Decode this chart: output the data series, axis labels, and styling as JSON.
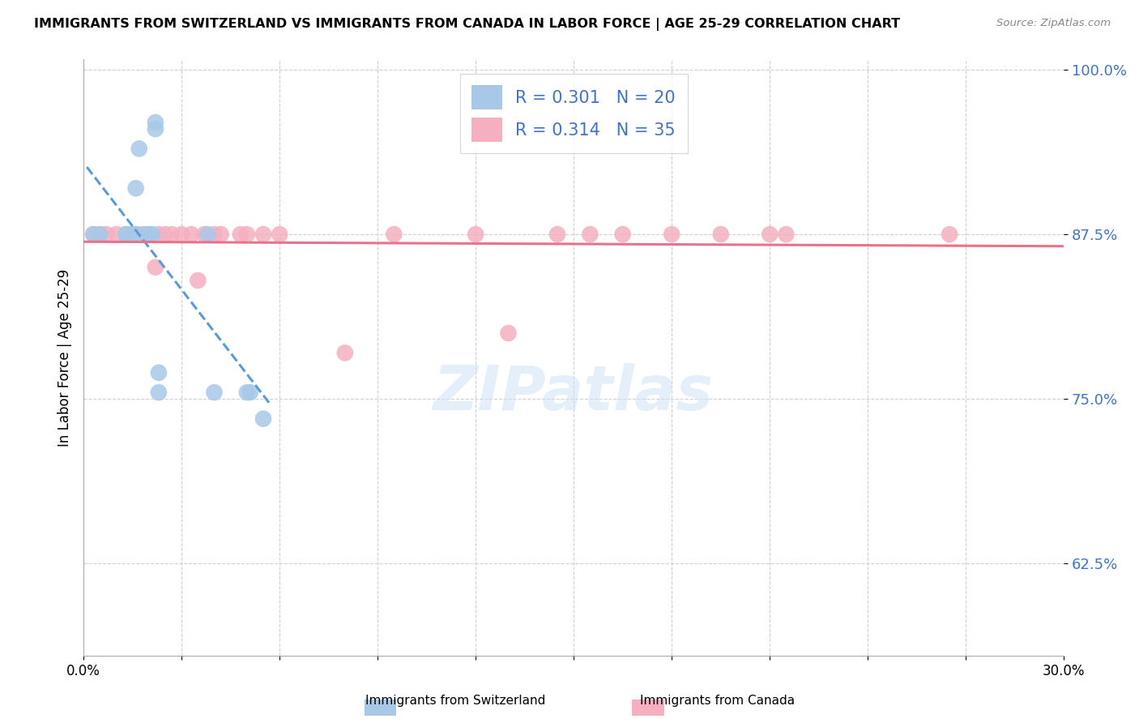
{
  "title": "IMMIGRANTS FROM SWITZERLAND VS IMMIGRANTS FROM CANADA IN LABOR FORCE | AGE 25-29 CORRELATION CHART",
  "source": "Source: ZipAtlas.com",
  "ylabel": "In Labor Force | Age 25-29",
  "xlim": [
    0.0,
    0.3
  ],
  "ylim": [
    0.555,
    1.008
  ],
  "yticks": [
    0.625,
    0.75,
    0.875,
    1.0
  ],
  "ytick_labels": [
    "62.5%",
    "75.0%",
    "87.5%",
    "100.0%"
  ],
  "xticks": [
    0.0,
    0.03,
    0.06,
    0.09,
    0.12,
    0.15,
    0.18,
    0.21,
    0.24,
    0.27,
    0.3
  ],
  "xtick_labels_show": [
    "0.0%",
    "30.0%"
  ],
  "legend_r_swiss": "R = 0.301",
  "legend_n_swiss": "N = 20",
  "legend_r_canada": "R = 0.314",
  "legend_n_canada": "N = 35",
  "color_swiss": "#a8c8e8",
  "color_canada": "#f5afc0",
  "color_swiss_line": "#5b9bd5",
  "color_canada_line": "#e8728a",
  "color_tick_right": "#4472c4",
  "color_legend_text": "#4472c4",
  "swiss_x": [
    0.003,
    0.005,
    0.013,
    0.013,
    0.015,
    0.016,
    0.016,
    0.017,
    0.019,
    0.02,
    0.021,
    0.022,
    0.022,
    0.023,
    0.023,
    0.038,
    0.04,
    0.05,
    0.051,
    0.055
  ],
  "swiss_y": [
    0.875,
    0.875,
    0.875,
    0.875,
    0.875,
    0.875,
    0.91,
    0.94,
    0.875,
    0.875,
    0.875,
    0.96,
    0.955,
    0.755,
    0.77,
    0.875,
    0.755,
    0.755,
    0.755,
    0.735
  ],
  "canada_x": [
    0.003,
    0.005,
    0.007,
    0.01,
    0.013,
    0.015,
    0.016,
    0.018,
    0.02,
    0.022,
    0.023,
    0.025,
    0.027,
    0.03,
    0.033,
    0.035,
    0.037,
    0.04,
    0.042,
    0.048,
    0.05,
    0.055,
    0.06,
    0.08,
    0.095,
    0.12,
    0.13,
    0.145,
    0.155,
    0.165,
    0.18,
    0.195,
    0.21,
    0.215,
    0.265
  ],
  "canada_y": [
    0.875,
    0.875,
    0.875,
    0.875,
    0.875,
    0.875,
    0.875,
    0.875,
    0.875,
    0.85,
    0.875,
    0.875,
    0.875,
    0.875,
    0.875,
    0.84,
    0.875,
    0.875,
    0.875,
    0.875,
    0.875,
    0.875,
    0.875,
    0.785,
    0.875,
    0.875,
    0.8,
    0.875,
    0.875,
    0.875,
    0.875,
    0.875,
    0.875,
    0.875,
    0.875
  ],
  "swiss_line_x": [
    0.001,
    0.057
  ],
  "canada_line_x": [
    0.0,
    0.3
  ]
}
